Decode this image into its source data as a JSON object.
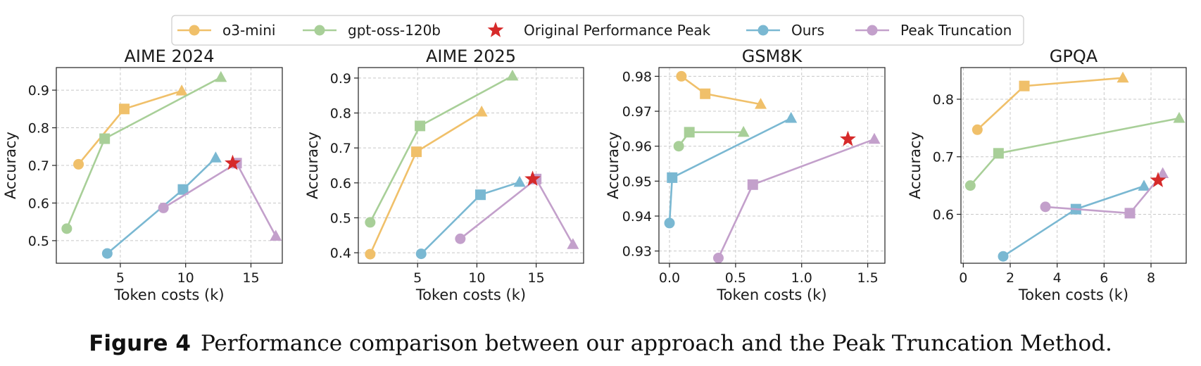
{
  "legend": [
    {
      "name": "o3-mini",
      "color": "#F0C06A",
      "marker": "circle",
      "line": true
    },
    {
      "name": "gpt-oss-120b",
      "color": "#A8CF98",
      "marker": "circle",
      "line": true
    },
    {
      "name": "Original Performance Peak",
      "color": "#D62A2A",
      "marker": "star",
      "line": false
    },
    {
      "name": "Ours",
      "color": "#7AB8D2",
      "marker": "circle",
      "line": true
    },
    {
      "name": "Peak Truncation",
      "color": "#C3A0CB",
      "marker": "circle",
      "line": true
    }
  ],
  "caption": {
    "label": "Figure 4",
    "text": "Performance comparison between our approach and the Peak Truncation Method."
  },
  "chart_data": [
    {
      "type": "line",
      "title": "AIME 2024",
      "xlabel": "Token costs (k)",
      "ylabel": "Accuracy",
      "xlim": [
        0.1,
        17.4
      ],
      "ylim": [
        0.44,
        0.96
      ],
      "xticks": [
        5,
        10,
        15
      ],
      "xtick_labels": [
        "5",
        "10",
        "15"
      ],
      "yticks": [
        0.5,
        0.6,
        0.7,
        0.8,
        0.9
      ],
      "ytick_labels": [
        "0.5",
        "0.6",
        "0.7",
        "0.8",
        "0.9"
      ],
      "grid": true,
      "series": [
        {
          "name": "o3-mini",
          "x": [
            1.8,
            5.3,
            9.7
          ],
          "y": [
            0.703,
            0.85,
            0.898
          ]
        },
        {
          "name": "gpt-oss-120b",
          "x": [
            0.9,
            3.8,
            12.7
          ],
          "y": [
            0.532,
            0.771,
            0.934
          ]
        },
        {
          "name": "Ours",
          "x": [
            4.0,
            9.8,
            12.3
          ],
          "y": [
            0.466,
            0.636,
            0.72
          ]
        },
        {
          "name": "Peak Truncation",
          "x": [
            8.3,
            13.9,
            16.9
          ],
          "y": [
            0.587,
            0.706,
            0.512
          ]
        }
      ],
      "peak": {
        "x": 13.6,
        "y": 0.706
      }
    },
    {
      "type": "line",
      "title": "AIME 2025",
      "xlabel": "Token costs (k)",
      "ylabel": "Accuracy",
      "xlim": [
        0.0,
        19.0
      ],
      "ylim": [
        0.37,
        0.93
      ],
      "xticks": [
        5,
        10,
        15
      ],
      "xtick_labels": [
        "5",
        "10",
        "15"
      ],
      "yticks": [
        0.4,
        0.5,
        0.6,
        0.7,
        0.8,
        0.9
      ],
      "ytick_labels": [
        "0.4",
        "0.5",
        "0.6",
        "0.7",
        "0.8",
        "0.9"
      ],
      "grid": true,
      "series": [
        {
          "name": "o3-mini",
          "x": [
            1.0,
            4.9,
            10.4
          ],
          "y": [
            0.396,
            0.689,
            0.803
          ]
        },
        {
          "name": "gpt-oss-120b",
          "x": [
            1.0,
            5.2,
            13.0
          ],
          "y": [
            0.487,
            0.763,
            0.906
          ]
        },
        {
          "name": "Ours",
          "x": [
            5.3,
            10.3,
            13.6
          ],
          "y": [
            0.397,
            0.566,
            0.602
          ]
        },
        {
          "name": "Peak Truncation",
          "x": [
            8.6,
            15.0,
            18.1
          ],
          "y": [
            0.44,
            0.611,
            0.424
          ]
        }
      ],
      "peak": {
        "x": 14.7,
        "y": 0.611
      }
    },
    {
      "type": "line",
      "title": "GSM8K",
      "xlabel": "Token costs (k)",
      "ylabel": "Accuracy",
      "xlim": [
        -0.08,
        1.63
      ],
      "ylim": [
        0.9265,
        0.9825
      ],
      "xticks": [
        0.0,
        0.5,
        1.0,
        1.5
      ],
      "xtick_labels": [
        "0.0",
        "0.5",
        "1.0",
        "1.5"
      ],
      "yticks": [
        0.93,
        0.94,
        0.95,
        0.96,
        0.97,
        0.98
      ],
      "ytick_labels": [
        "0.93",
        "0.94",
        "0.95",
        "0.96",
        "0.97",
        "0.98"
      ],
      "grid": true,
      "series": [
        {
          "name": "o3-mini",
          "x": [
            0.09,
            0.27,
            0.69
          ],
          "y": [
            0.98,
            0.975,
            0.972
          ]
        },
        {
          "name": "gpt-oss-120b",
          "x": [
            0.07,
            0.15,
            0.56
          ],
          "y": [
            0.96,
            0.964,
            0.964
          ]
        },
        {
          "name": "Ours",
          "x": [
            0.0,
            0.02,
            0.92
          ],
          "y": [
            0.938,
            0.951,
            0.968
          ]
        },
        {
          "name": "Peak Truncation",
          "x": [
            0.37,
            0.63,
            1.55
          ],
          "y": [
            0.928,
            0.949,
            0.962
          ]
        }
      ],
      "peak": {
        "x": 1.35,
        "y": 0.962
      }
    },
    {
      "type": "line",
      "title": "GPQA",
      "xlabel": "Token costs (k)",
      "ylabel": "Accuracy",
      "xlim": [
        -0.1,
        9.5
      ],
      "ylim": [
        0.515,
        0.855
      ],
      "xticks": [
        0,
        2,
        4,
        6,
        8
      ],
      "xtick_labels": [
        "0",
        "2",
        "4",
        "6",
        "8"
      ],
      "yticks": [
        0.6,
        0.7,
        0.8
      ],
      "ytick_labels": [
        "0.6",
        "0.7",
        "0.8"
      ],
      "grid": true,
      "series": [
        {
          "name": "o3-mini",
          "x": [
            0.6,
            2.6,
            6.8
          ],
          "y": [
            0.747,
            0.823,
            0.837
          ]
        },
        {
          "name": "gpt-oss-120b",
          "x": [
            0.3,
            1.5,
            9.2
          ],
          "y": [
            0.65,
            0.706,
            0.767
          ]
        },
        {
          "name": "Ours",
          "x": [
            1.7,
            4.8,
            7.7
          ],
          "y": [
            0.527,
            0.609,
            0.649
          ]
        },
        {
          "name": "Peak Truncation",
          "x": [
            3.5,
            7.1,
            8.5
          ],
          "y": [
            0.613,
            0.602,
            0.671
          ]
        }
      ],
      "peak": {
        "x": 8.3,
        "y": 0.659
      }
    }
  ]
}
